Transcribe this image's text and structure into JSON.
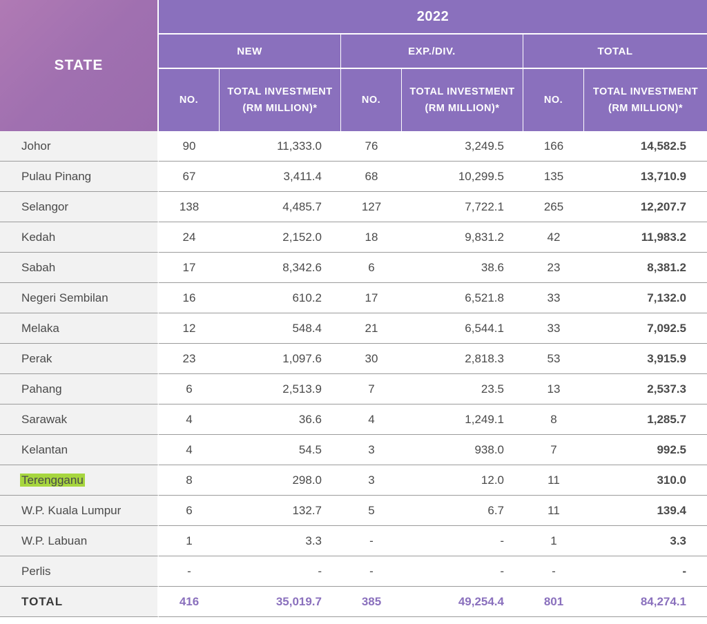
{
  "header": {
    "state_label": "STATE",
    "year": "2022",
    "groups": [
      "NEW",
      "EXP./DIV.",
      "TOTAL"
    ],
    "no_label": "NO.",
    "investment_label_line1": "TOTAL INVESTMENT",
    "investment_label_line2": "(RM MILLION)*"
  },
  "rows": [
    {
      "state": "Johor",
      "new_no": "90",
      "new_inv": "11,333.0",
      "exp_no": "76",
      "exp_inv": "3,249.5",
      "total_no": "166",
      "total_inv": "14,582.5"
    },
    {
      "state": "Pulau Pinang",
      "new_no": "67",
      "new_inv": "3,411.4",
      "exp_no": "68",
      "exp_inv": "10,299.5",
      "total_no": "135",
      "total_inv": "13,710.9"
    },
    {
      "state": "Selangor",
      "new_no": "138",
      "new_inv": "4,485.7",
      "exp_no": "127",
      "exp_inv": "7,722.1",
      "total_no": "265",
      "total_inv": "12,207.7"
    },
    {
      "state": "Kedah",
      "new_no": "24",
      "new_inv": "2,152.0",
      "exp_no": "18",
      "exp_inv": "9,831.2",
      "total_no": "42",
      "total_inv": "11,983.2"
    },
    {
      "state": "Sabah",
      "new_no": "17",
      "new_inv": "8,342.6",
      "exp_no": "6",
      "exp_inv": "38.6",
      "total_no": "23",
      "total_inv": "8,381.2"
    },
    {
      "state": "Negeri Sembilan",
      "new_no": "16",
      "new_inv": "610.2",
      "exp_no": "17",
      "exp_inv": "6,521.8",
      "total_no": "33",
      "total_inv": "7,132.0"
    },
    {
      "state": "Melaka",
      "new_no": "12",
      "new_inv": "548.4",
      "exp_no": "21",
      "exp_inv": "6,544.1",
      "total_no": "33",
      "total_inv": "7,092.5"
    },
    {
      "state": "Perak",
      "new_no": "23",
      "new_inv": "1,097.6",
      "exp_no": "30",
      "exp_inv": "2,818.3",
      "total_no": "53",
      "total_inv": "3,915.9"
    },
    {
      "state": "Pahang",
      "new_no": "6",
      "new_inv": "2,513.9",
      "exp_no": "7",
      "exp_inv": "23.5",
      "total_no": "13",
      "total_inv": "2,537.3"
    },
    {
      "state": "Sarawak",
      "new_no": "4",
      "new_inv": "36.6",
      "exp_no": "4",
      "exp_inv": "1,249.1",
      "total_no": "8",
      "total_inv": "1,285.7"
    },
    {
      "state": "Kelantan",
      "new_no": "4",
      "new_inv": "54.5",
      "exp_no": "3",
      "exp_inv": "938.0",
      "total_no": "7",
      "total_inv": "992.5"
    },
    {
      "state": "Terengganu",
      "new_no": "8",
      "new_inv": "298.0",
      "exp_no": "3",
      "exp_inv": "12.0",
      "total_no": "11",
      "total_inv": "310.0",
      "highlighted": true
    },
    {
      "state": "W.P. Kuala Lumpur",
      "new_no": "6",
      "new_inv": "132.7",
      "exp_no": "5",
      "exp_inv": "6.7",
      "total_no": "11",
      "total_inv": "139.4"
    },
    {
      "state": "W.P. Labuan",
      "new_no": "1",
      "new_inv": "3.3",
      "exp_no": "-",
      "exp_inv": "-",
      "total_no": "1",
      "total_inv": "3.3"
    },
    {
      "state": "Perlis",
      "new_no": "-",
      "new_inv": "-",
      "exp_no": "-",
      "exp_inv": "-",
      "total_no": "-",
      "total_inv": "-"
    }
  ],
  "total_row": {
    "state": "TOTAL",
    "new_no": "416",
    "new_inv": "35,019.7",
    "exp_no": "385",
    "exp_inv": "49,254.4",
    "total_no": "801",
    "total_inv": "84,274.1"
  },
  "colors": {
    "header_purple": "#8a70bd",
    "state_header": "#a070b0",
    "highlight": "#a7d63f"
  }
}
